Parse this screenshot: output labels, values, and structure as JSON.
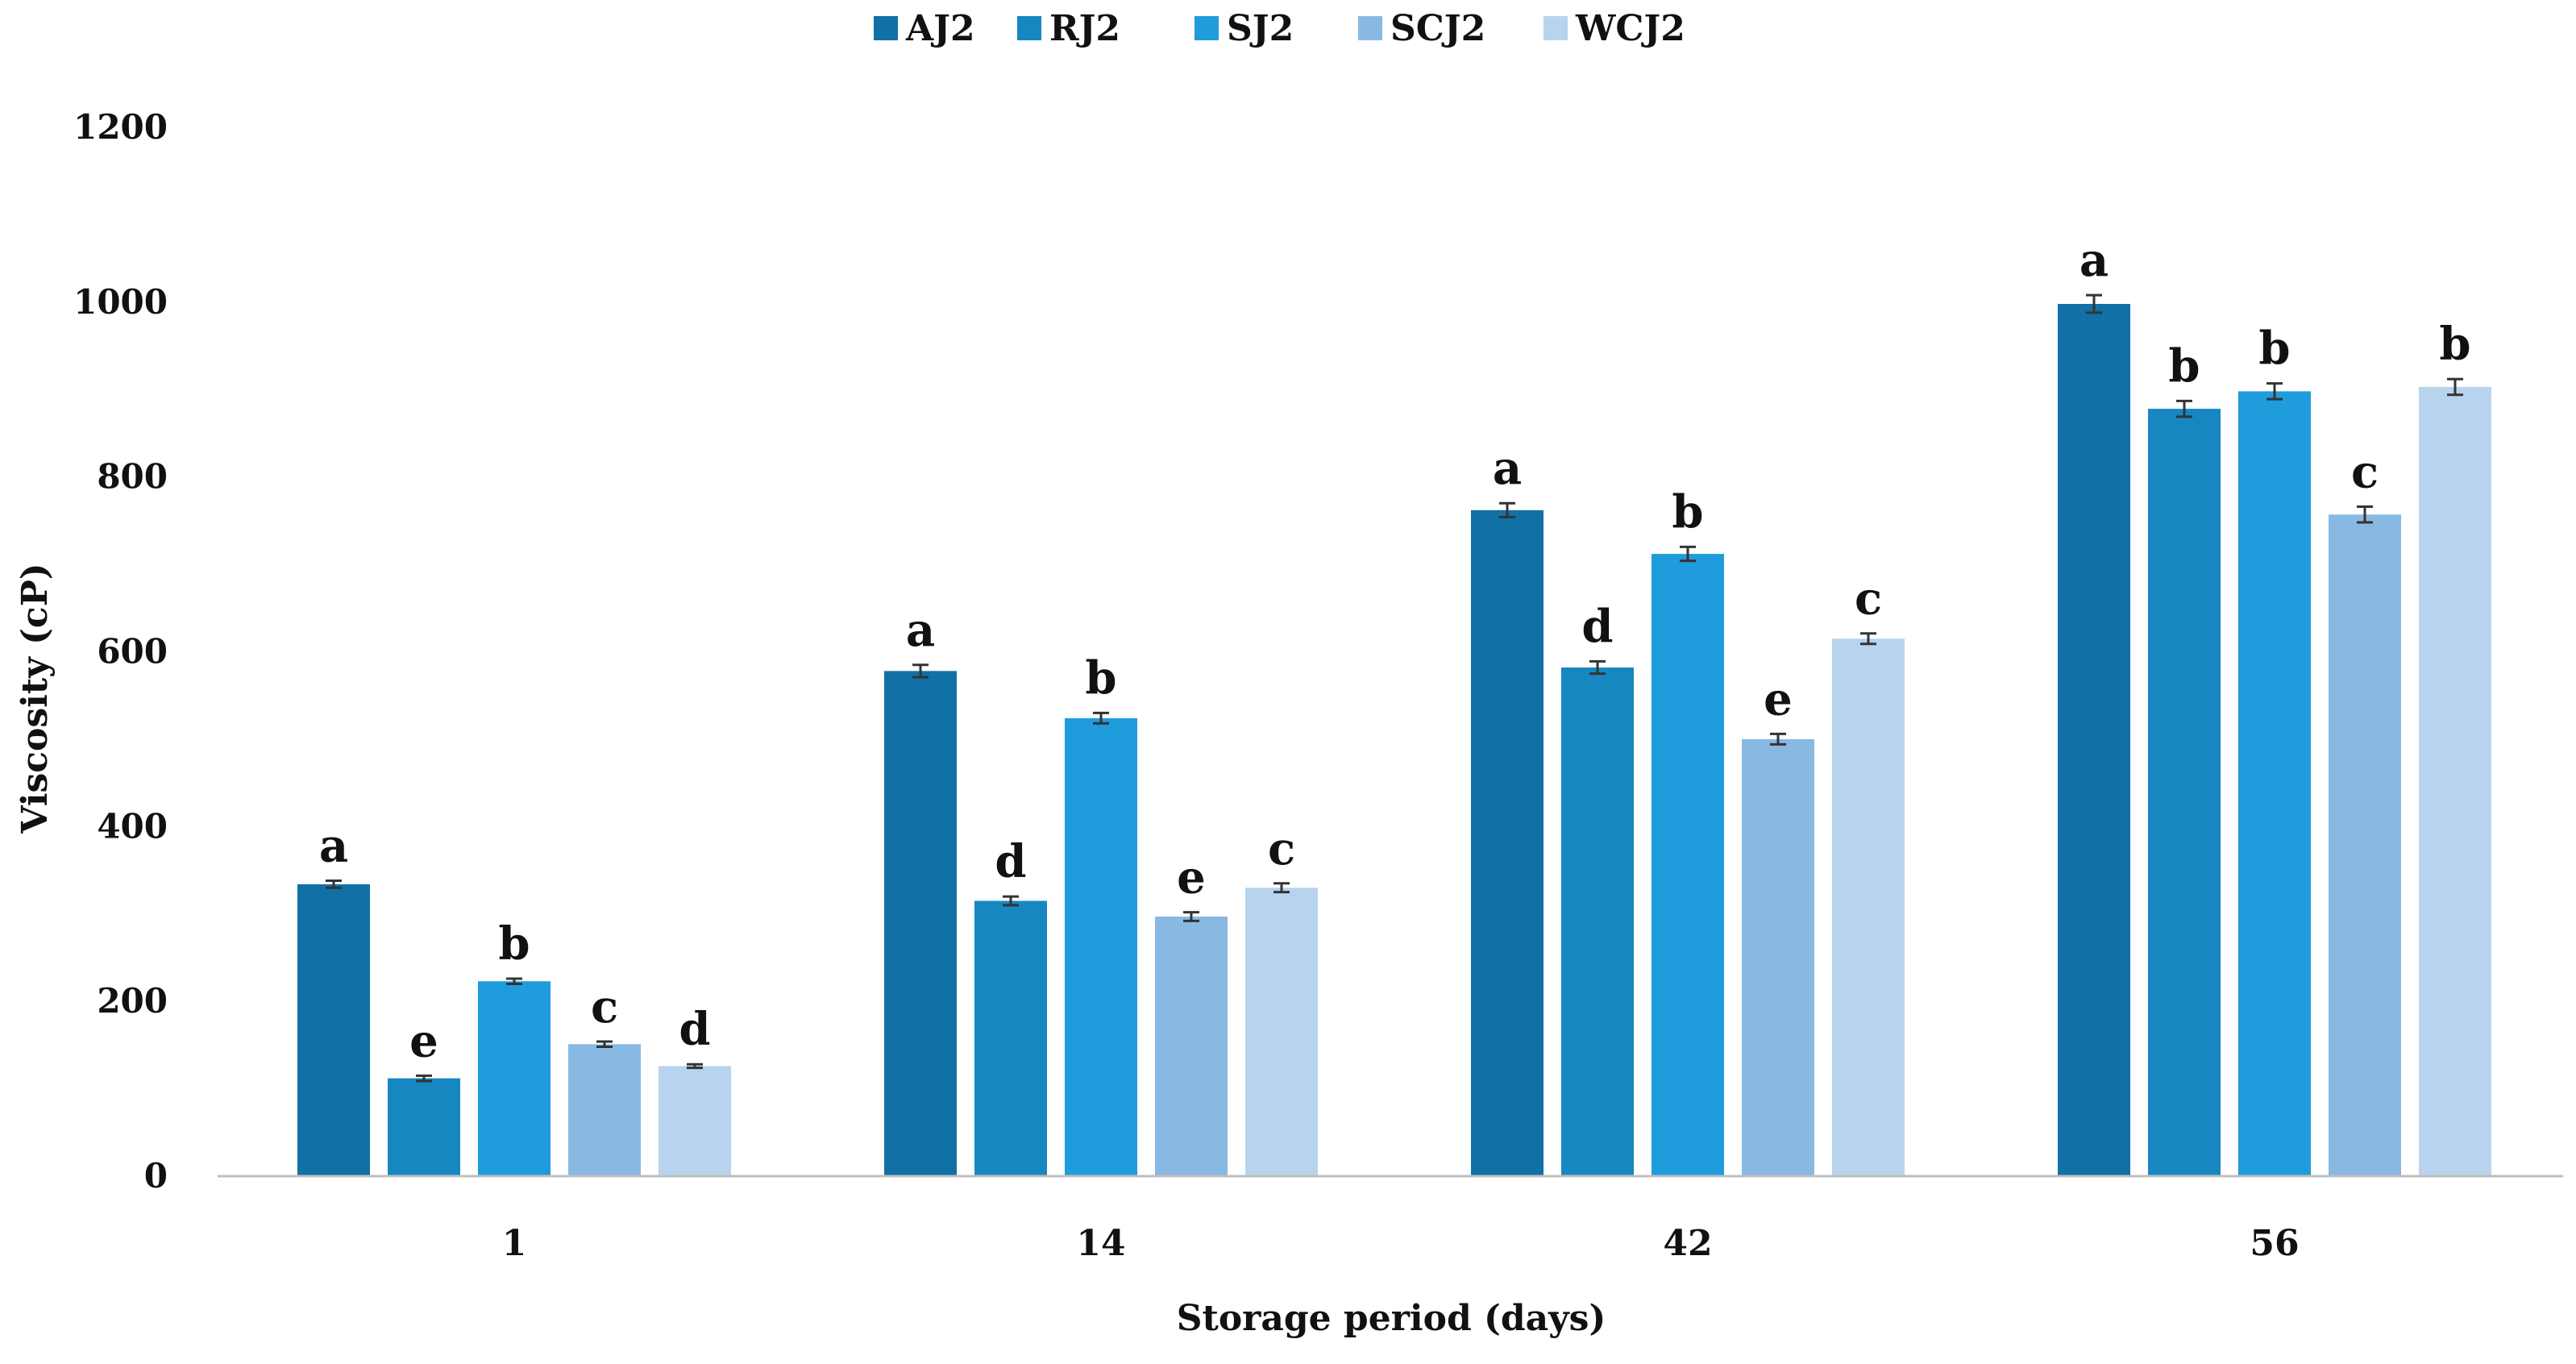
{
  "chart_data": {
    "type": "bar",
    "title": "",
    "xlabel": "Storage period  (days)",
    "ylabel": "Viscosity  (cP)",
    "ylim": [
      0,
      1200
    ],
    "yticks": [
      0,
      200,
      400,
      600,
      800,
      1000,
      1200
    ],
    "grid": false,
    "legend_position": "top-center",
    "categories": [
      "1",
      "14",
      "42",
      "56"
    ],
    "series": [
      {
        "name": "AJ2",
        "color": "#1170a6",
        "values": [
          334,
          578,
          762,
          998
        ],
        "errors": [
          4,
          7,
          8,
          10
        ],
        "labels": [
          "a",
          "a",
          "a",
          "a"
        ]
      },
      {
        "name": "RJ2",
        "color": "#1787c2",
        "values": [
          112,
          315,
          582,
          878
        ],
        "errors": [
          3,
          5,
          7,
          9
        ],
        "labels": [
          "e",
          "d",
          "d",
          "b"
        ]
      },
      {
        "name": "SJ2",
        "color": "#1f9cdc",
        "values": [
          223,
          524,
          712,
          898
        ],
        "errors": [
          3,
          6,
          8,
          9
        ],
        "labels": [
          "b",
          "b",
          "b",
          "b"
        ]
      },
      {
        "name": "SCJ2",
        "color": "#88b9e2",
        "values": [
          151,
          297,
          500,
          757
        ],
        "errors": [
          3,
          5,
          6,
          9
        ],
        "labels": [
          "c",
          "e",
          "e",
          "c"
        ]
      },
      {
        "name": "WCJ2",
        "color": "#b8d3ee",
        "values": [
          126,
          330,
          615,
          903
        ],
        "errors": [
          2,
          5,
          6,
          9
        ],
        "labels": [
          "d",
          "c",
          "c",
          "b"
        ]
      }
    ]
  }
}
